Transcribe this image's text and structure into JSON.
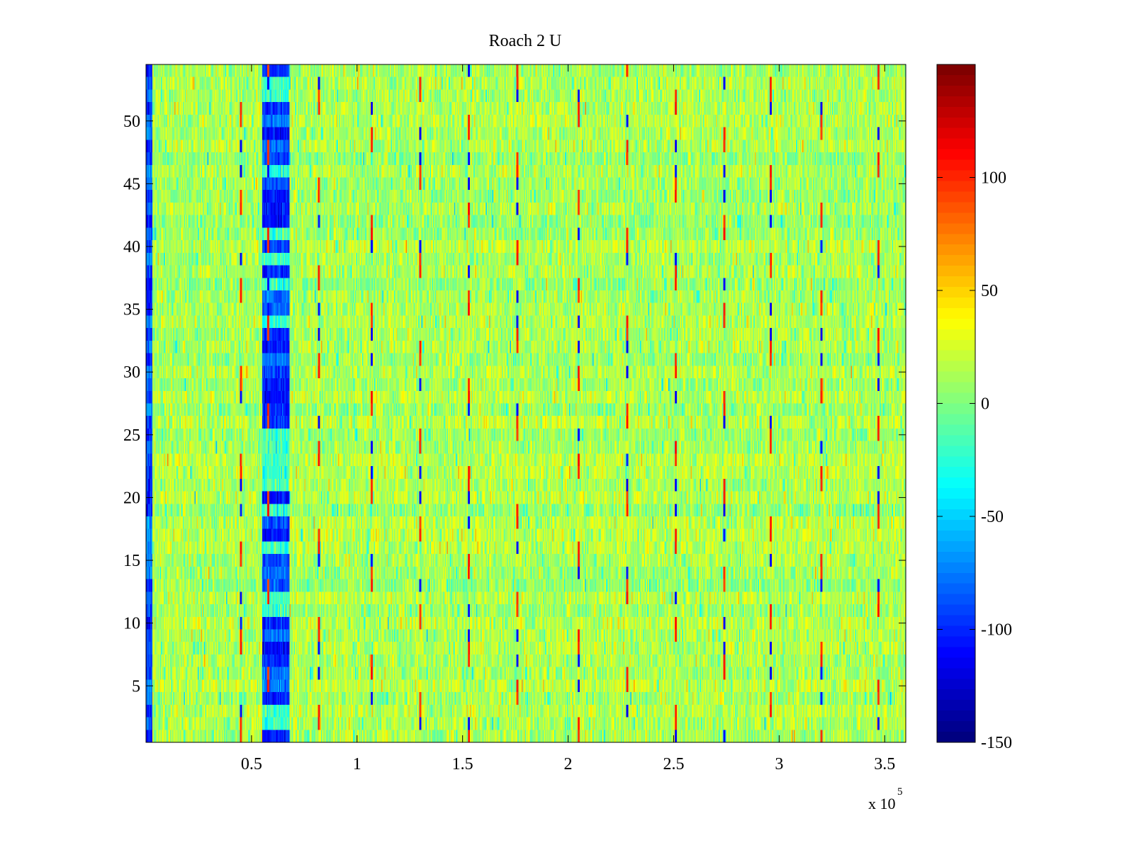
{
  "chart_data": {
    "type": "heatmap",
    "title": "Roach 2 U",
    "xlabel": "",
    "ylabel": "",
    "x_exponent_label": "x 10",
    "x_exponent_power": "5",
    "xlim": [
      0,
      360000
    ],
    "ylim": [
      0.5,
      54.5
    ],
    "x_ticks": [
      50000,
      100000,
      150000,
      200000,
      250000,
      300000,
      350000
    ],
    "x_tick_labels": [
      "0.5",
      "1",
      "1.5",
      "2",
      "2.5",
      "3",
      "3.5"
    ],
    "y_ticks": [
      5,
      10,
      15,
      20,
      25,
      30,
      35,
      40,
      45,
      50
    ],
    "y_tick_labels": [
      "5",
      "10",
      "15",
      "20",
      "25",
      "30",
      "35",
      "40",
      "45",
      "50"
    ],
    "rows": 54,
    "columns_approx": 360,
    "colormap": "jet",
    "clim": [
      -150,
      150
    ],
    "colorbar": {
      "ticks": [
        100,
        50,
        0,
        -50,
        -100,
        -150
      ],
      "tick_labels": [
        "100",
        "50",
        "0",
        "-50",
        "-100",
        "-150"
      ],
      "placement": "right"
    },
    "value_description": "mostly noise around 0 to 30; low values near x = 60000 (-80 to -120) and at x near 0; periodic spikes every ~23000 both high (~100) and low (~-100)",
    "notable_features": {
      "low_band_x": [
        55000,
        68000
      ],
      "left_edge_low_x": [
        0,
        3000
      ],
      "spike_x": [
        45000,
        58000,
        82000,
        107000,
        130000,
        153000,
        176000,
        205000,
        228000,
        251000,
        274000,
        296000,
        320000,
        347000
      ]
    },
    "grid": false
  },
  "colors": {
    "background": "#ffffff",
    "axis": "#000000"
  }
}
